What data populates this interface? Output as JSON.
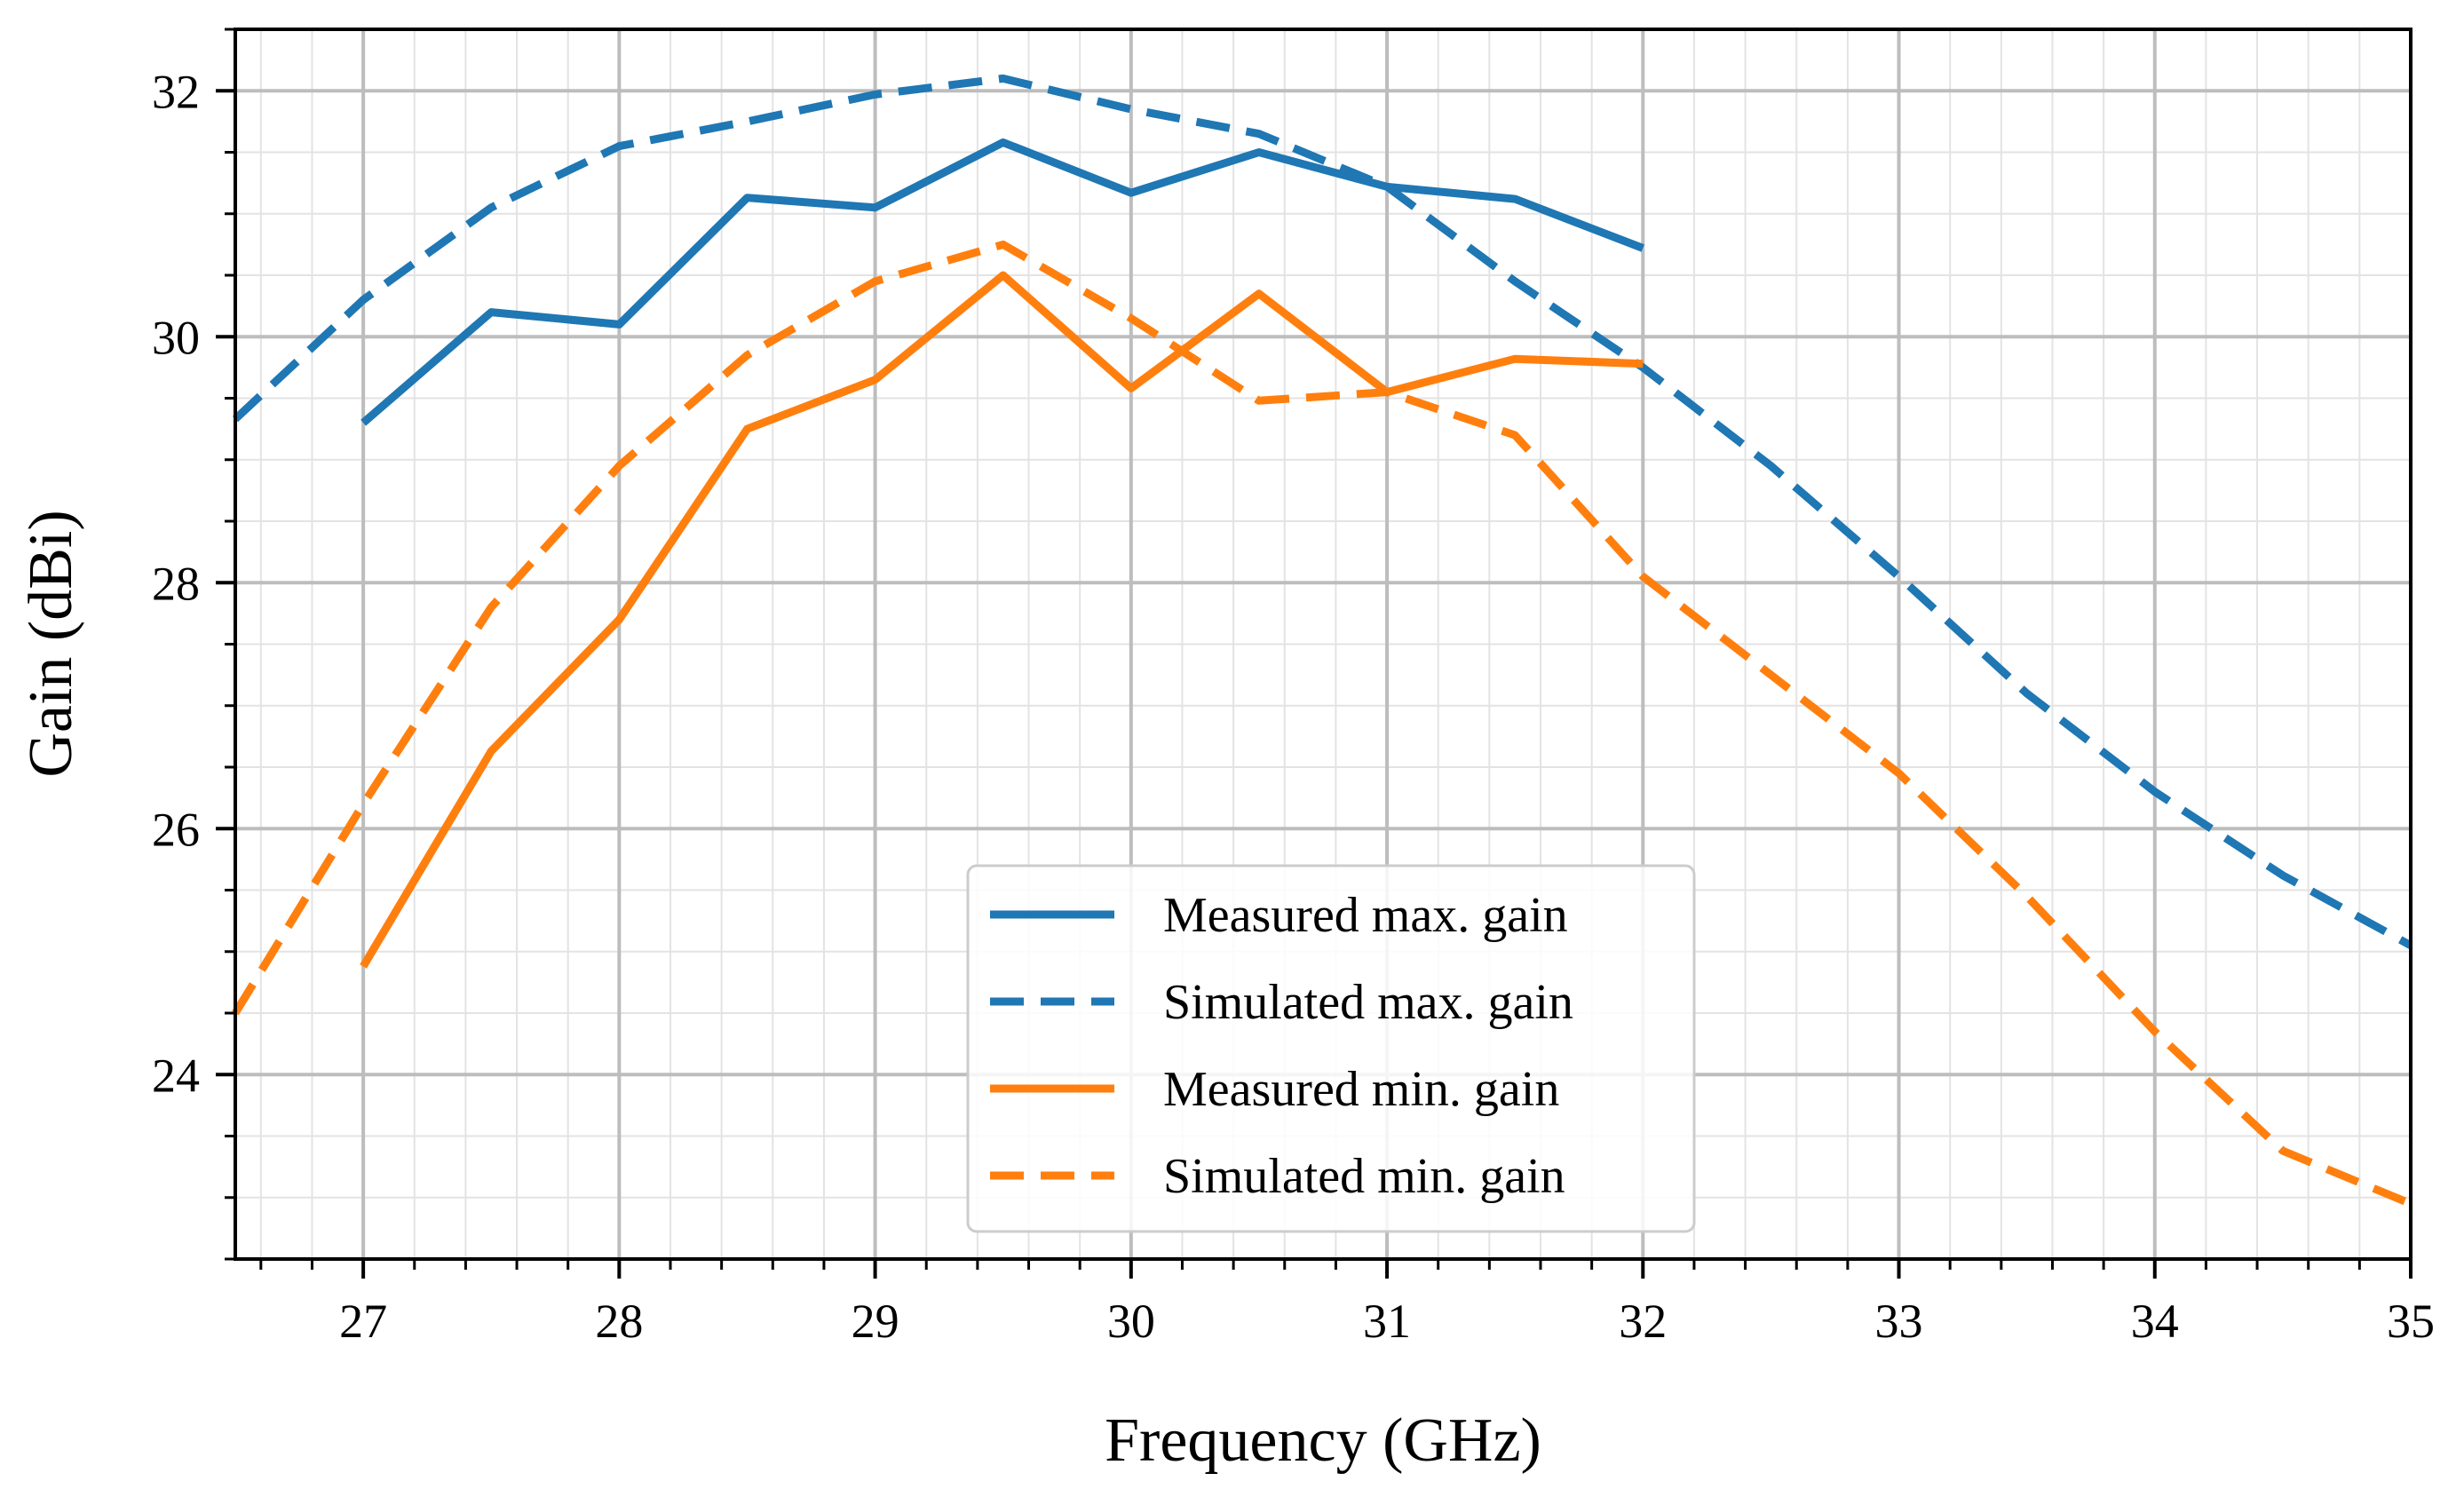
{
  "chart_data": {
    "type": "line",
    "title": "",
    "xlabel": "Frequency (GHz)",
    "ylabel": "Gain (dBi)",
    "xlim": [
      26.5,
      35
    ],
    "ylim": [
      22.5,
      32.5
    ],
    "xticks": [
      27,
      28,
      29,
      30,
      31,
      32,
      33,
      34,
      35
    ],
    "yticks": [
      24,
      26,
      28,
      30,
      32
    ],
    "x_minor_step": 0.2,
    "y_minor_step": 0.5,
    "grid": true,
    "legend_position": "lower-center",
    "series": [
      {
        "name": "Measured max. gain",
        "color": "#1f77b4",
        "style": "solid",
        "x": [
          27,
          27.5,
          28,
          28.5,
          29,
          29.5,
          30,
          30.5,
          31,
          31.5,
          32
        ],
        "y": [
          29.3,
          30.2,
          30.1,
          31.13,
          31.05,
          31.58,
          31.17,
          31.5,
          31.22,
          31.12,
          30.72
        ]
      },
      {
        "name": "Simulated max. gain",
        "color": "#1f77b4",
        "style": "dashed",
        "x": [
          26.5,
          27,
          27.5,
          28,
          28.5,
          29,
          29.5,
          30,
          30.5,
          31,
          31.5,
          32,
          32.5,
          33,
          33.5,
          34,
          34.5,
          35
        ],
        "y": [
          29.33,
          30.3,
          31.05,
          31.55,
          31.75,
          31.97,
          32.1,
          31.85,
          31.65,
          31.22,
          30.45,
          29.75,
          28.95,
          28.05,
          27.1,
          26.3,
          25.62,
          25.05
        ]
      },
      {
        "name": "Measured min. gain",
        "color": "#ff7f0e",
        "style": "solid",
        "x": [
          27,
          27.5,
          28,
          28.5,
          29,
          29.5,
          30,
          30.5,
          31,
          31.5,
          32
        ],
        "y": [
          24.88,
          26.63,
          27.7,
          29.25,
          29.65,
          30.5,
          29.58,
          30.35,
          29.55,
          29.82,
          29.78
        ]
      },
      {
        "name": "Simulated min. gain",
        "color": "#ff7f0e",
        "style": "dashed",
        "x": [
          26.5,
          27,
          27.5,
          28,
          28.5,
          29,
          29.5,
          30,
          30.5,
          31,
          31.5,
          32,
          32.5,
          33,
          33.5,
          34,
          34.5,
          35
        ],
        "y": [
          24.5,
          26.2,
          27.8,
          28.95,
          29.85,
          30.45,
          30.75,
          30.15,
          29.48,
          29.55,
          29.2,
          28.05,
          27.25,
          26.45,
          25.45,
          24.35,
          23.38,
          22.95
        ]
      }
    ]
  }
}
